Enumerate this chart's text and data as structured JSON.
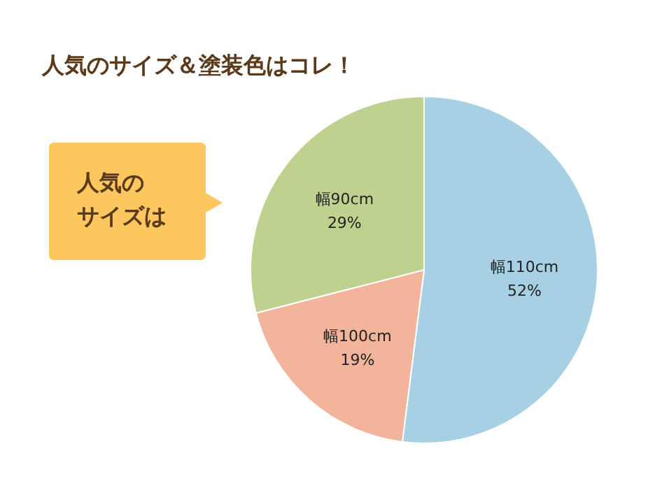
{
  "chart_data": {
    "type": "pie",
    "title": "人気のサイズ＆塗装色はコレ！",
    "categories": [
      "幅110cm",
      "幅100cm",
      "幅90cm"
    ],
    "values": [
      52,
      19,
      29
    ],
    "colors": [
      "#a8d0e4",
      "#f2b49a",
      "#bfd18e"
    ],
    "value_labels": [
      "52%",
      "19%",
      "29%"
    ],
    "annotations": [
      "人気の",
      "サイズは"
    ]
  }
}
